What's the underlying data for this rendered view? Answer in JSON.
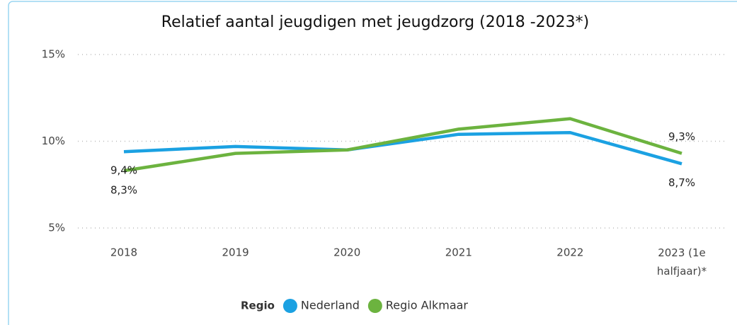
{
  "chart_data": {
    "type": "line",
    "title": "Relatief aantal jeugdigen met jeugdzorg (2018 -2023*)",
    "categories": [
      "2018",
      "2019",
      "2020",
      "2021",
      "2022",
      "2023 (1e halfjaar)*"
    ],
    "series": [
      {
        "name": "Nederland",
        "color": "#1ba1e2",
        "values": [
          9.4,
          9.7,
          9.5,
          10.4,
          10.5,
          8.7
        ],
        "value_labels": [
          "9,4%",
          null,
          null,
          null,
          null,
          "8,7%"
        ]
      },
      {
        "name": "Regio Alkmaar",
        "color": "#6cb33f",
        "values": [
          8.3,
          9.3,
          9.5,
          10.7,
          11.3,
          9.3
        ],
        "value_labels": [
          "8,3%",
          null,
          null,
          null,
          null,
          "9,3%"
        ]
      }
    ],
    "ylim": [
      5,
      15
    ],
    "yticks": [
      {
        "value": 5,
        "label": "5%"
      },
      {
        "value": 10,
        "label": "10%"
      },
      {
        "value": 15,
        "label": "15%"
      }
    ],
    "grid": true,
    "legend_title": "Regio",
    "legend": "bottom"
  }
}
